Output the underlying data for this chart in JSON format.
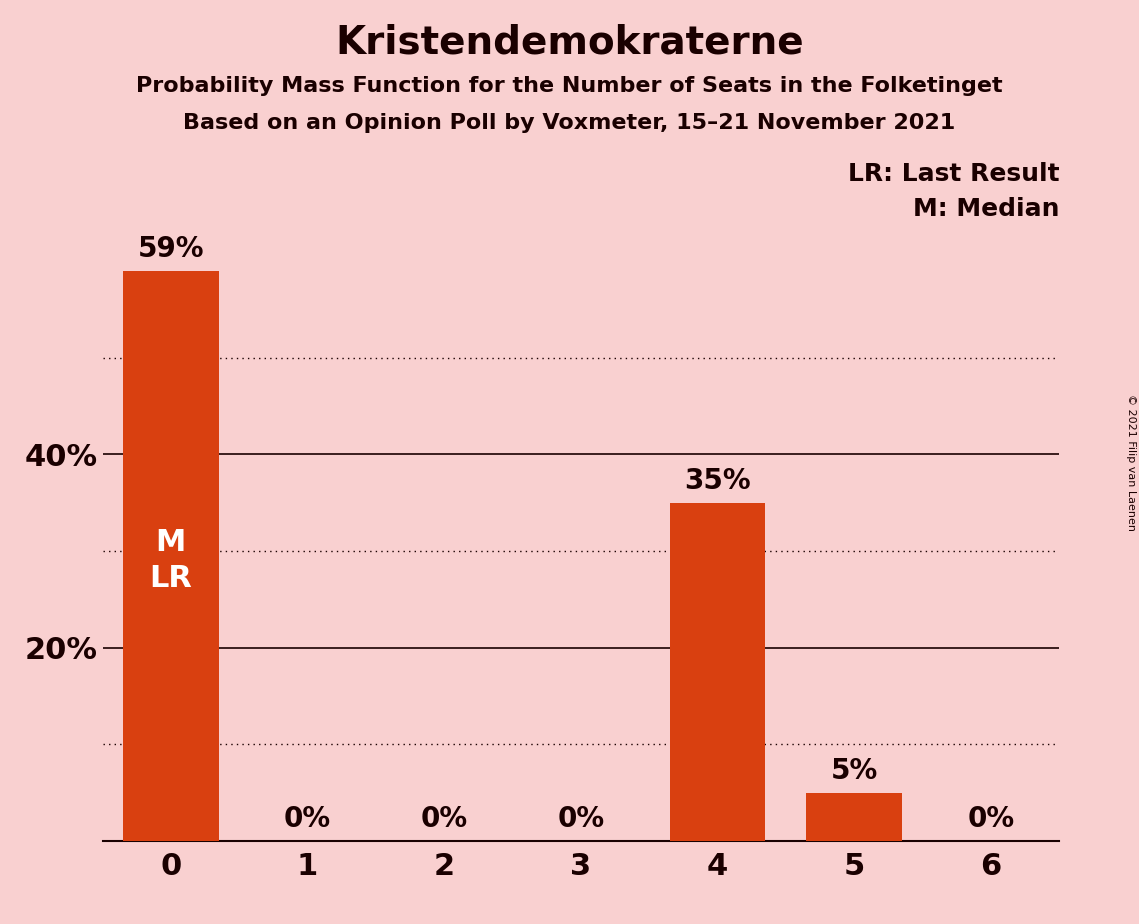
{
  "title": "Kristendemokraterne",
  "subtitle1": "Probability Mass Function for the Number of Seats in the Folketinget",
  "subtitle2": "Based on an Opinion Poll by Voxmeter, 15–21 November 2021",
  "copyright_text": "© 2021 Filip van Laenen",
  "categories": [
    0,
    1,
    2,
    3,
    4,
    5,
    6
  ],
  "values": [
    0.59,
    0.0,
    0.0,
    0.0,
    0.35,
    0.05,
    0.0
  ],
  "bar_color": "#d94010",
  "background_color": "#f9d0d0",
  "text_color": "#1a0000",
  "bar_label_color_outside": "#1a0000",
  "bar_label_color_inside": "#ffffff",
  "median_seat": 0,
  "last_result_seat": 0,
  "legend_lr": "LR: Last Result",
  "legend_m": "M: Median",
  "ylim": [
    0,
    0.65
  ],
  "solid_gridlines": [
    0.2,
    0.4
  ],
  "dotted_gridlines": [
    0.1,
    0.3,
    0.5
  ],
  "grid_color": "#1a0000",
  "title_fontsize": 28,
  "subtitle_fontsize": 16,
  "axis_tick_fontsize": 22,
  "bar_label_fontsize": 20,
  "bar_inner_label_fontsize": 22,
  "legend_fontsize": 18,
  "copyright_fontsize": 8
}
